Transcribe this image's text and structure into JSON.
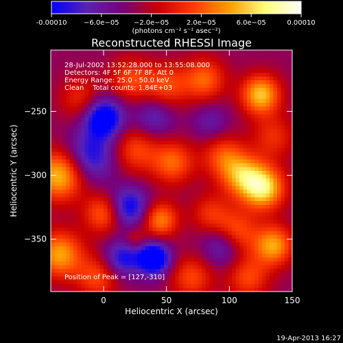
{
  "chart_data": {
    "type": "heatmap",
    "title": "Reconstructed RHESSI Image",
    "xlabel": "Heliocentric X (arcsec)",
    "ylabel": "Heliocentric Y (arcsec)",
    "xlim": [
      -42,
      150
    ],
    "ylim": [
      -391,
      -202
    ],
    "x_ticks": [
      0,
      50,
      100,
      150
    ],
    "y_ticks": [
      -250,
      -300,
      -350
    ],
    "colorbar": {
      "range": [
        -0.0001,
        0.0001
      ],
      "tick_values": [
        -0.0001,
        -6e-05,
        -2e-05,
        2e-05,
        6e-05,
        0.0001
      ],
      "tick_labels": [
        "-0.00010",
        "−6.0e−05",
        "−2.0e−05",
        "2.0e−05",
        "6.0e−05",
        "0.00010"
      ],
      "unit_label": "(photons cm⁻² s⁻¹ asec⁻²)",
      "colors": [
        "#0000ff",
        "#5a22b4",
        "#7a007a",
        "#c80000",
        "#ff3c00",
        "#ff9c00",
        "#ffff78",
        "#ffffff"
      ]
    },
    "annotations": [
      "28-Jul-2002 13:52:28.000 to 13:55:08.000",
      "Detectors: 4F 5F 6F 7F 8F, Att 0",
      "Energy Range: 25.0 - 50.0 keV",
      "Clean    Total counts: 1.84E+03"
    ],
    "peak_label": "Position of Peak = [127,-310]",
    "peak_position": [
      127,
      -310
    ],
    "features": [
      {
        "x": -35,
        "y": -300,
        "amp": 9e-05,
        "sigma": 14
      },
      {
        "x": -35,
        "y": -362,
        "amp": 8e-05,
        "sigma": 13
      },
      {
        "x": -18,
        "y": -240,
        "amp": 4e-05,
        "sigma": 12
      },
      {
        "x": -10,
        "y": -285,
        "amp": -6e-05,
        "sigma": 14
      },
      {
        "x": 0,
        "y": -330,
        "amp": 6e-05,
        "sigma": 11
      },
      {
        "x": -5,
        "y": -380,
        "amp": 5e-05,
        "sigma": 12
      },
      {
        "x": 0,
        "y": -255,
        "amp": -9e-05,
        "sigma": 11
      },
      {
        "x": 22,
        "y": -225,
        "amp": 5e-05,
        "sigma": 12
      },
      {
        "x": 50,
        "y": -230,
        "amp": 5e-05,
        "sigma": 12
      },
      {
        "x": 40,
        "y": -255,
        "amp": -4e-05,
        "sigma": 11
      },
      {
        "x": 25,
        "y": -280,
        "amp": 5e-05,
        "sigma": 13
      },
      {
        "x": 55,
        "y": -290,
        "amp": 6e-05,
        "sigma": 12
      },
      {
        "x": 45,
        "y": -335,
        "amp": 7e-05,
        "sigma": 10
      },
      {
        "x": 40,
        "y": -365,
        "amp": -0.0001,
        "sigma": 9
      },
      {
        "x": 20,
        "y": -325,
        "amp": -7e-05,
        "sigma": 11
      },
      {
        "x": 15,
        "y": -365,
        "amp": -6e-05,
        "sigma": 10
      },
      {
        "x": 25,
        "y": -350,
        "amp": 3e-05,
        "sigma": 6
      },
      {
        "x": 70,
        "y": -380,
        "amp": 5e-05,
        "sigma": 12
      },
      {
        "x": 80,
        "y": -225,
        "amp": 6e-05,
        "sigma": 12
      },
      {
        "x": 85,
        "y": -258,
        "amp": -3e-05,
        "sigma": 10
      },
      {
        "x": 95,
        "y": -285,
        "amp": 5e-05,
        "sigma": 12
      },
      {
        "x": 110,
        "y": -300,
        "amp": 7e-05,
        "sigma": 12
      },
      {
        "x": 85,
        "y": -330,
        "amp": 4e-05,
        "sigma": 11
      },
      {
        "x": 95,
        "y": -355,
        "amp": -5e-05,
        "sigma": 11
      },
      {
        "x": 125,
        "y": -237,
        "amp": 9e-05,
        "sigma": 11
      },
      {
        "x": 135,
        "y": -270,
        "amp": 4e-05,
        "sigma": 12
      },
      {
        "x": 127,
        "y": -310,
        "amp": 0.0001,
        "sigma": 12
      },
      {
        "x": 105,
        "y": -345,
        "amp": 6e-05,
        "sigma": 12
      },
      {
        "x": 135,
        "y": -355,
        "amp": 8e-05,
        "sigma": 11
      },
      {
        "x": 115,
        "y": -380,
        "amp": 5e-05,
        "sigma": 12
      }
    ],
    "baseline": -3.5e-05
  },
  "footer": {
    "timestamp": "19-Apr-2013 16:27"
  }
}
